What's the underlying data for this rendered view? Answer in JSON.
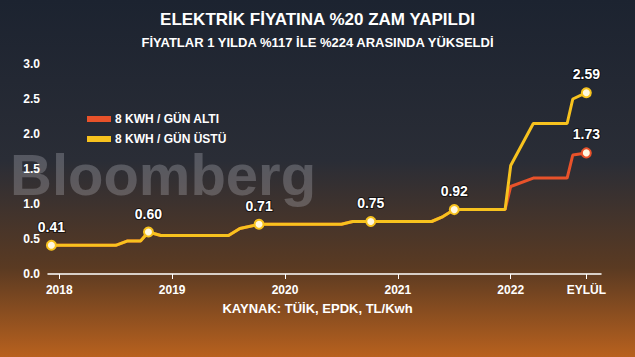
{
  "chart_data": {
    "type": "line",
    "title": "ELEKTRİK FİYATINA %20 ZAM YAPILDI",
    "subtitle": "FİYATLAR 1 YILDA %117 İLE %224 ARASINDA YÜKSELDİ",
    "annotations": [
      "KAYNAK: TÜİK, EPDK, TL/Kwh"
    ],
    "watermark": "Bloomberg",
    "x": [
      2017.93,
      2018.5,
      2018.6,
      2018.72,
      2018.79,
      2018.9,
      2019.5,
      2019.6,
      2019.77,
      2020.5,
      2020.6,
      2020.76,
      2021.3,
      2021.4,
      2021.5,
      2021.95,
      2022.0,
      2022.2,
      2022.5,
      2022.55,
      2022.67
    ],
    "series": [
      {
        "name": "8 KWH / GÜN ALTI",
        "color": "#e8522a",
        "marker": "circle",
        "values": [
          0.41,
          0.41,
          0.47,
          0.47,
          0.6,
          0.55,
          0.55,
          0.65,
          0.71,
          0.71,
          0.75,
          0.75,
          0.75,
          0.82,
          0.92,
          0.92,
          1.25,
          1.37,
          1.37,
          1.7,
          1.73
        ],
        "value_labels": [
          null,
          null,
          null,
          null,
          null,
          null,
          null,
          null,
          null,
          null,
          null,
          null,
          null,
          null,
          null,
          null,
          null,
          null,
          null,
          null,
          "1.73"
        ]
      },
      {
        "name": "8 KWH / GÜN ÜSTÜ",
        "color": "#f7c21e",
        "marker": "circle",
        "values": [
          0.41,
          0.41,
          0.47,
          0.47,
          0.6,
          0.55,
          0.55,
          0.65,
          0.71,
          0.71,
          0.75,
          0.75,
          0.75,
          0.82,
          0.92,
          0.92,
          1.55,
          2.15,
          2.15,
          2.5,
          2.59
        ],
        "value_labels": [
          "0.41",
          null,
          null,
          null,
          "0.60",
          null,
          null,
          null,
          "0.71",
          null,
          null,
          "0.75",
          null,
          null,
          "0.92",
          null,
          null,
          null,
          null,
          null,
          "2.59"
        ]
      }
    ],
    "xlim": [
      2017.9,
      2022.8
    ],
    "xticks": [
      2018,
      2019,
      2020,
      2021,
      2022,
      {
        "value": 2022.67,
        "label": "EYLÜL"
      }
    ],
    "ylim": [
      0,
      3
    ],
    "yticks": [
      {
        "value": 0,
        "label": "0.0"
      },
      {
        "value": 0.5,
        "label": "0.5"
      },
      {
        "value": 1,
        "label": "1.0"
      },
      {
        "value": 1.5,
        "label": "1.5"
      },
      {
        "value": 2,
        "label": "2.0"
      },
      {
        "value": 2.5,
        "label": "2.5"
      },
      {
        "value": 3,
        "label": "3.0"
      }
    ],
    "grid": false,
    "legend": "upper left"
  }
}
